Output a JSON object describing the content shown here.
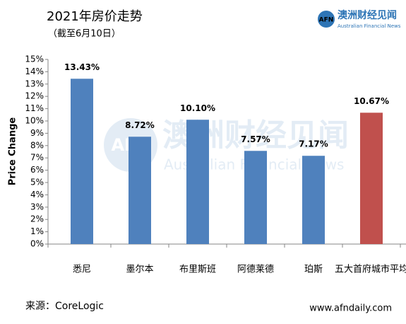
{
  "chart_data": {
    "type": "bar",
    "title": "2021年房价走势",
    "subtitle": "（截至6月10日）",
    "y_label": "Price Change",
    "categories": [
      "悉尼",
      "墨尔本",
      "布里斯班",
      "阿德莱德",
      "珀斯",
      "五大首府城市平均"
    ],
    "values": [
      13.43,
      8.72,
      10.1,
      7.57,
      7.17,
      10.67
    ],
    "value_labels": [
      "13.43%",
      "8.72%",
      "10.10%",
      "7.57%",
      "7.17%",
      "10.67%"
    ],
    "colors": [
      "#4f81bd",
      "#4f81bd",
      "#4f81bd",
      "#4f81bd",
      "#4f81bd",
      "#c0504d"
    ],
    "ylim": [
      0,
      15
    ],
    "yticks": [
      {
        "value": 0,
        "label": "0%"
      },
      {
        "value": 1,
        "label": "1%"
      },
      {
        "value": 2,
        "label": "2%"
      },
      {
        "value": 3,
        "label": "3%"
      },
      {
        "value": 4,
        "label": "4%"
      },
      {
        "value": 5,
        "label": "5%"
      },
      {
        "value": 6,
        "label": "6%"
      },
      {
        "value": 7,
        "label": "7%"
      },
      {
        "value": 8,
        "label": "8%"
      },
      {
        "value": 9,
        "label": "9%"
      },
      {
        "value": 10,
        "label": "10%"
      },
      {
        "value": 11,
        "label": "11%"
      },
      {
        "value": 12,
        "label": "12%"
      },
      {
        "value": 13,
        "label": "13%"
      },
      {
        "value": 14,
        "label": "14%"
      },
      {
        "value": 15,
        "label": "15%"
      }
    ],
    "grid": false,
    "source": "来源：CoreLogic",
    "website": "www.afndaily.com",
    "logo": {
      "mark": "AFN",
      "name": "澳洲财经见闻",
      "name_en": "Australian Financial News"
    }
  }
}
